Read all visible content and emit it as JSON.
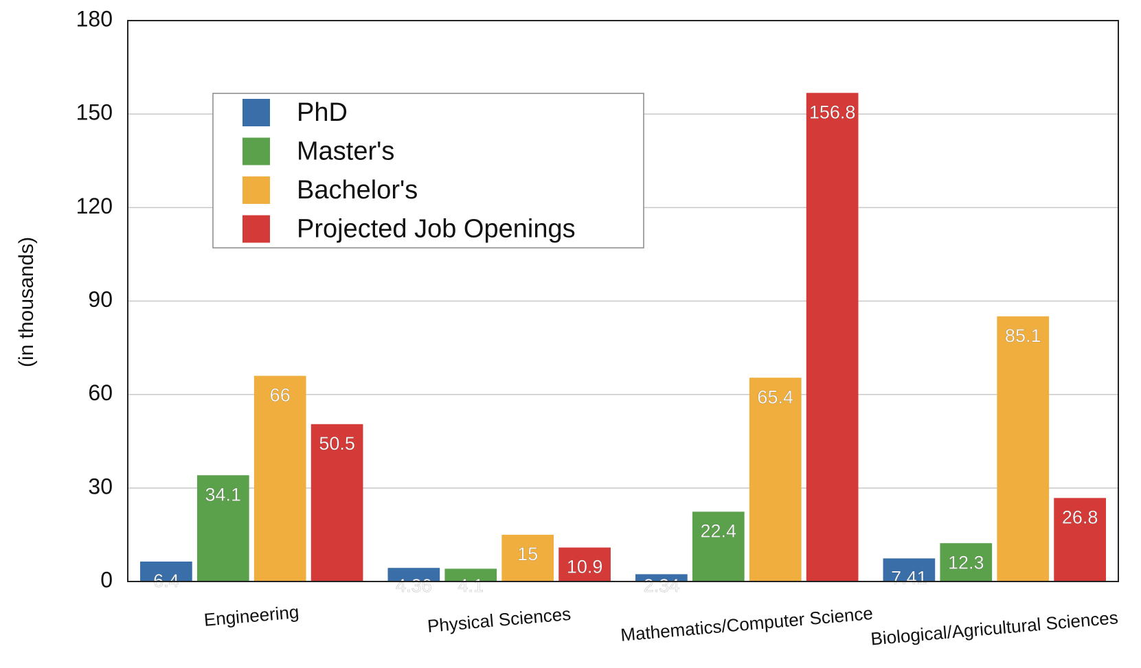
{
  "chart_data": {
    "type": "bar",
    "y_label": "(in thousands)",
    "categories": [
      "Engineering",
      "Physical Sciences",
      "Mathematics/Computer Science",
      "Biological/Agricultural Sciences"
    ],
    "series": [
      {
        "name": "PhD",
        "color": "#3a6ea8",
        "values": [
          6.4,
          4.36,
          2.34,
          7.41
        ]
      },
      {
        "name": "Master's",
        "color": "#5ba14b",
        "values": [
          34.1,
          4.1,
          22.4,
          12.3
        ]
      },
      {
        "name": "Bachelor's",
        "color": "#efae3e",
        "values": [
          66,
          15,
          65.4,
          85.1
        ]
      },
      {
        "name": "Projected Job Openings",
        "color": "#d43a38",
        "values": [
          50.5,
          10.9,
          156.8,
          26.8
        ]
      }
    ],
    "ylim": [
      0,
      180
    ],
    "yticks": [
      0,
      30,
      60,
      90,
      120,
      150,
      180
    ],
    "grid": true,
    "legend": "upper left"
  }
}
